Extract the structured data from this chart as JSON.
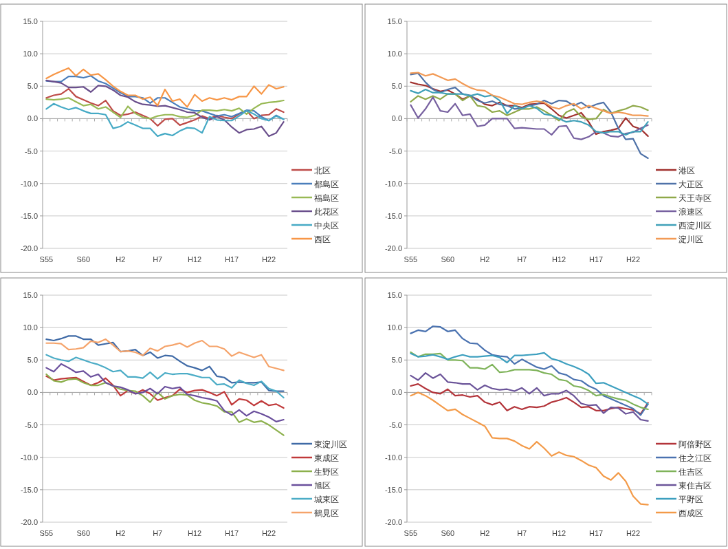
{
  "chart_data": [
    {
      "type": "line",
      "categories": [
        "S55",
        null,
        null,
        null,
        null,
        "S60",
        null,
        null,
        null,
        null,
        "H2",
        null,
        null,
        null,
        null,
        "H7",
        null,
        null,
        null,
        null,
        "H12",
        null,
        null,
        null,
        null,
        "H17",
        null,
        null,
        null,
        null,
        "H22",
        null,
        null
      ],
      "ylim": [
        -20,
        15
      ],
      "yticks": [
        {
          "value": 15,
          "label": "15.0"
        },
        {
          "value": 10,
          "label": "10.0"
        },
        {
          "value": 5,
          "label": "5.0"
        },
        {
          "value": 0,
          "label": "0.0"
        },
        {
          "value": -5,
          "label": "-5.0"
        },
        {
          "value": -10,
          "label": "-10.0"
        },
        {
          "value": -15,
          "label": "-15.0"
        },
        {
          "value": -20,
          "label": "-20.0"
        }
      ],
      "grid": "y",
      "legend": "right",
      "series": [
        {
          "name": "北区",
          "color": "#be4b48",
          "values": [
            3.2,
            3.6,
            3.8,
            4.6,
            3.4,
            2.9,
            2.4,
            2.0,
            2.8,
            1.2,
            0.5,
            0.7,
            1.0,
            0.5,
            0.0,
            -1.1,
            -0.1,
            0.0,
            -1.0,
            -0.6,
            -0.2,
            0.4,
            0.0,
            0.5,
            0.2,
            0.0,
            0.7,
            1.2,
            0.0,
            0.5,
            0.6,
            1.5,
            1.0
          ]
        },
        {
          "name": "都島区",
          "color": "#4a7ebb",
          "values": [
            5.8,
            5.7,
            5.7,
            6.5,
            6.5,
            6.3,
            6.6,
            5.8,
            5.4,
            4.7,
            4.0,
            3.4,
            3.4,
            3.2,
            2.4,
            3.2,
            3.2,
            2.5,
            1.8,
            1.5,
            1.2,
            1.2,
            0.8,
            0.4,
            0.6,
            0.3,
            0.8,
            1.3,
            1.2,
            0.3,
            -0.3,
            0.5,
            -0.1
          ]
        },
        {
          "name": "福島区",
          "color": "#98b954",
          "values": [
            3.0,
            2.9,
            3.0,
            3.2,
            2.6,
            2.0,
            2.2,
            1.5,
            1.8,
            1.0,
            0.2,
            1.9,
            0.8,
            0.2,
            0.0,
            0.4,
            0.6,
            0.6,
            0.3,
            0.2,
            0.5,
            1.3,
            1.3,
            1.2,
            1.4,
            1.2,
            1.6,
            0.7,
            1.6,
            2.3,
            2.5,
            2.6,
            2.8
          ]
        },
        {
          "name": "此花区",
          "color": "#6a4f8c",
          "values": [
            5.9,
            5.7,
            5.5,
            4.8,
            4.8,
            4.9,
            4.1,
            5.1,
            5.0,
            4.4,
            3.6,
            3.3,
            2.6,
            2.2,
            2.1,
            1.9,
            2.0,
            1.7,
            1.4,
            1.0,
            0.9,
            0.2,
            -0.2,
            0.3,
            -0.2,
            -1.3,
            -2.2,
            -1.7,
            -1.6,
            -1.2,
            -2.7,
            -2.2,
            -0.5
          ]
        },
        {
          "name": "中央区",
          "color": "#46aac5",
          "values": [
            1.5,
            2.3,
            1.8,
            1.4,
            1.7,
            1.2,
            0.8,
            0.8,
            0.6,
            -1.5,
            -1.2,
            -0.5,
            -1.0,
            -1.5,
            -1.5,
            -2.7,
            -2.3,
            -2.6,
            -1.9,
            -1.4,
            -1.5,
            -2.2,
            0.3,
            -0.2,
            -0.3,
            -0.3,
            0.4,
            1.2,
            0.7,
            0.0,
            -0.3,
            0.4,
            -0.1
          ]
        },
        {
          "name": "西区",
          "color": "#f79646",
          "values": [
            6.2,
            6.8,
            7.3,
            7.8,
            6.6,
            7.6,
            6.7,
            6.9,
            6.0,
            5.0,
            4.2,
            3.6,
            3.6,
            3.0,
            3.3,
            2.0,
            4.5,
            2.7,
            3.0,
            1.8,
            3.7,
            2.7,
            3.2,
            2.9,
            3.2,
            2.9,
            3.4,
            3.4,
            5.0,
            3.8,
            5.2,
            4.6,
            4.9
          ]
        }
      ]
    },
    {
      "type": "line",
      "categories": [
        "S55",
        null,
        null,
        null,
        null,
        "S60",
        null,
        null,
        null,
        null,
        "H2",
        null,
        null,
        null,
        null,
        "H7",
        null,
        null,
        null,
        null,
        "H12",
        null,
        null,
        null,
        null,
        "H17",
        null,
        null,
        null,
        null,
        "H22",
        null,
        null
      ],
      "ylim": [
        -20,
        15
      ],
      "yticks": [
        {
          "value": 15,
          "label": "15.0"
        },
        {
          "value": 10,
          "label": "10.0"
        },
        {
          "value": 5,
          "label": "5.0"
        },
        {
          "value": 0,
          "label": "0.0"
        },
        {
          "value": -5,
          "label": "-5.0"
        },
        {
          "value": -10,
          "label": "-10.0"
        },
        {
          "value": -15,
          "label": "-15.0"
        },
        {
          "value": -20,
          "label": "-20.0"
        }
      ],
      "grid": "y",
      "legend": "right",
      "series": [
        {
          "name": "港区",
          "color": "#a1312e",
          "values": [
            5.6,
            5.3,
            5.1,
            4.6,
            4.2,
            4.4,
            3.8,
            3.0,
            3.5,
            3.0,
            2.2,
            2.0,
            2.5,
            2.0,
            2.0,
            1.7,
            2.2,
            2.3,
            2.4,
            1.5,
            0.5,
            0.1,
            0.5,
            0.9,
            -0.5,
            -2.4,
            -2.0,
            -1.8,
            -1.5,
            0.1,
            -1.2,
            -1.6,
            -2.7
          ]
        },
        {
          "name": "大正区",
          "color": "#4f72a8",
          "values": [
            6.8,
            7.0,
            5.6,
            4.5,
            4.0,
            4.5,
            4.8,
            3.8,
            3.6,
            2.8,
            2.4,
            2.7,
            2.2,
            2.0,
            1.5,
            1.6,
            2.0,
            2.2,
            2.8,
            2.3,
            2.8,
            2.7,
            2.0,
            2.5,
            1.7,
            2.2,
            2.5,
            1.0,
            -1.5,
            -3.2,
            -3.1,
            -5.4,
            -6.1
          ]
        },
        {
          "name": "天王寺区",
          "color": "#8fa849",
          "values": [
            2.6,
            3.5,
            3.0,
            3.5,
            3.0,
            3.8,
            3.8,
            2.8,
            3.5,
            2.0,
            1.8,
            1.0,
            1.2,
            0.5,
            1.0,
            1.5,
            1.5,
            1.8,
            1.2,
            0.5,
            -0.3,
            1.0,
            1.5,
            0.3,
            -0.1,
            0.0,
            1.4,
            0.8,
            1.2,
            1.5,
            2.0,
            1.8,
            1.3
          ]
        },
        {
          "name": "浪速区",
          "color": "#7761a0",
          "values": [
            2.1,
            0.1,
            1.5,
            3.3,
            1.2,
            1.0,
            2.3,
            0.5,
            0.7,
            -1.2,
            -1.0,
            0.0,
            0.0,
            0.0,
            -1.5,
            -1.4,
            -1.5,
            -1.6,
            -1.6,
            -2.5,
            -1.2,
            -1.1,
            -3.0,
            -3.2,
            -2.8,
            -2.0,
            -2.2,
            -2.7,
            -2.8,
            -2.3,
            -2.1,
            -1.5,
            -1.0
          ]
        },
        {
          "name": "西淀川区",
          "color": "#3fa0b8",
          "values": [
            4.3,
            3.9,
            4.5,
            4.0,
            4.0,
            3.8,
            3.8,
            3.8,
            3.5,
            3.8,
            3.4,
            3.6,
            2.8,
            0.8,
            2.0,
            1.5,
            2.0,
            1.6,
            0.7,
            0.5,
            0.0,
            -0.5,
            -0.3,
            -0.5,
            -1.0,
            -2.0,
            -2.2,
            -2.0,
            -2.0,
            -2.5,
            -2.0,
            -2.0,
            -0.5
          ]
        },
        {
          "name": "淀川区",
          "color": "#f29a55",
          "values": [
            7.0,
            7.1,
            6.6,
            6.9,
            6.4,
            5.9,
            6.1,
            5.4,
            4.8,
            4.4,
            4.3,
            3.6,
            3.3,
            2.8,
            2.3,
            2.2,
            2.5,
            2.7,
            2.5,
            1.8,
            1.5,
            2.0,
            2.3,
            1.5,
            2.0,
            1.6,
            1.2,
            0.8,
            1.0,
            0.8,
            0.5,
            0.5,
            0.4
          ]
        }
      ]
    },
    {
      "type": "line",
      "categories": [
        "S55",
        null,
        null,
        null,
        null,
        "S60",
        null,
        null,
        null,
        null,
        "H2",
        null,
        null,
        null,
        null,
        "H7",
        null,
        null,
        null,
        null,
        "H12",
        null,
        null,
        null,
        null,
        "H17",
        null,
        null,
        null,
        null,
        "H22",
        null,
        null
      ],
      "ylim": [
        -20,
        15
      ],
      "yticks": [
        {
          "value": 15,
          "label": "15.0"
        },
        {
          "value": 10,
          "label": "10.0"
        },
        {
          "value": 5,
          "label": "5.0"
        },
        {
          "value": 0,
          "label": "0.0"
        },
        {
          "value": -5,
          "label": "-5.0"
        },
        {
          "value": -10,
          "label": "-10.0"
        },
        {
          "value": -15,
          "label": "-15.0"
        },
        {
          "value": -20,
          "label": "-20.0"
        }
      ],
      "grid": "y",
      "legend": "right",
      "series": [
        {
          "name": "東淀川区",
          "color": "#3f6aa6",
          "values": [
            8.2,
            8.0,
            8.3,
            8.7,
            8.7,
            8.2,
            8.2,
            7.3,
            7.5,
            7.7,
            6.3,
            6.4,
            6.6,
            5.7,
            6.2,
            5.3,
            5.7,
            5.6,
            4.8,
            4.1,
            3.8,
            3.4,
            4.0,
            2.5,
            2.3,
            1.5,
            1.6,
            1.5,
            1.5,
            1.6,
            0.3,
            0.2,
            0.2
          ]
        },
        {
          "name": "東成区",
          "color": "#c0393a",
          "values": [
            2.5,
            1.9,
            2.1,
            2.2,
            2.3,
            1.7,
            1.1,
            1.5,
            2.2,
            1.1,
            -0.5,
            0.3,
            -0.2,
            0.4,
            -0.2,
            -1.2,
            -0.8,
            -0.5,
            0.5,
            0.0,
            0.3,
            0.4,
            0.0,
            -0.5,
            0.1,
            -1.9,
            -1.0,
            -1.2,
            -2.0,
            -1.3,
            -2.0,
            -1.8,
            -2.4
          ]
        },
        {
          "name": "生野区",
          "color": "#8cb04c",
          "values": [
            2.8,
            1.8,
            1.6,
            2.0,
            2.1,
            1.5,
            1.1,
            1.1,
            1.5,
            1.0,
            0.5,
            0.3,
            0.2,
            -0.5,
            -1.5,
            0.0,
            -1.0,
            -0.5,
            -0.3,
            -0.4,
            -1.2,
            -1.6,
            -1.8,
            -2.1,
            -3.0,
            -3.0,
            -4.6,
            -4.1,
            -4.6,
            -4.4,
            -5.0,
            -5.8,
            -6.6
          ]
        },
        {
          "name": "旭区",
          "color": "#6a4f9c",
          "values": [
            3.8,
            3.2,
            4.4,
            3.8,
            3.1,
            3.3,
            2.4,
            2.8,
            1.5,
            1.0,
            0.8,
            0.4,
            -0.2,
            0.0,
            0.6,
            -0.2,
            0.9,
            0.6,
            0.8,
            -0.3,
            -0.5,
            -0.8,
            -1.0,
            -1.3,
            -2.8,
            -3.5,
            -2.7,
            -3.6,
            -2.9,
            -3.3,
            -3.8,
            -4.5,
            -4.2
          ]
        },
        {
          "name": "城東区",
          "color": "#4bacc6",
          "values": [
            5.8,
            5.3,
            5.0,
            4.8,
            5.4,
            5.0,
            4.6,
            4.3,
            3.8,
            3.2,
            3.4,
            2.4,
            2.4,
            2.2,
            3.1,
            2.1,
            3.0,
            2.8,
            2.9,
            2.9,
            2.6,
            2.3,
            2.3,
            1.2,
            1.3,
            0.7,
            1.9,
            1.4,
            1.1,
            1.7,
            0.6,
            0.2,
            -0.8
          ]
        },
        {
          "name": "鶴見区",
          "color": "#f5a36a",
          "values": [
            7.6,
            7.6,
            7.5,
            6.6,
            6.7,
            6.9,
            7.9,
            7.7,
            8.2,
            7.3,
            6.3,
            6.4,
            6.2,
            5.7,
            6.8,
            6.4,
            7.1,
            7.3,
            7.6,
            7.0,
            7.6,
            8.0,
            7.1,
            7.1,
            6.7,
            5.6,
            6.2,
            5.8,
            5.4,
            5.8,
            4.0,
            3.7,
            3.4
          ]
        }
      ]
    },
    {
      "type": "line",
      "categories": [
        "S55",
        null,
        null,
        null,
        null,
        "S60",
        null,
        null,
        null,
        null,
        "H2",
        null,
        null,
        null,
        null,
        "H7",
        null,
        null,
        null,
        null,
        "H12",
        null,
        null,
        null,
        null,
        "H17",
        null,
        null,
        null,
        null,
        "H22",
        null,
        null
      ],
      "ylim": [
        -20,
        15
      ],
      "yticks": [
        {
          "value": 15,
          "label": "15.0"
        },
        {
          "value": 10,
          "label": "10.0"
        },
        {
          "value": 5,
          "label": "5.0"
        },
        {
          "value": 0,
          "label": "0.0"
        },
        {
          "value": -5,
          "label": "-5.0"
        },
        {
          "value": -10,
          "label": "-10.0"
        },
        {
          "value": -15,
          "label": "-15.0"
        },
        {
          "value": -20,
          "label": "-20.0"
        }
      ],
      "grid": "y",
      "legend": "right",
      "series": [
        {
          "name": "阿倍野区",
          "color": "#b3343a",
          "values": [
            1.0,
            1.3,
            0.6,
            0.0,
            -0.2,
            0.5,
            -0.5,
            -0.4,
            -0.7,
            -0.5,
            -1.5,
            -1.9,
            -1.5,
            -2.8,
            -2.2,
            -2.6,
            -2.2,
            -2.3,
            -2.1,
            -1.5,
            -1.2,
            -0.8,
            -1.5,
            -2.3,
            -2.2,
            -2.8,
            -2.8,
            -2.5,
            -2.3,
            -2.5,
            -2.7,
            -3.3,
            -1.6
          ]
        },
        {
          "name": "住之江区",
          "color": "#4a72b0",
          "values": [
            9.1,
            9.6,
            9.4,
            10.2,
            10.1,
            9.4,
            9.6,
            8.3,
            7.6,
            7.5,
            6.5,
            5.8,
            5.6,
            5.5,
            4.4,
            5.1,
            4.5,
            3.9,
            3.6,
            4.1,
            3.0,
            2.7,
            2.0,
            1.8,
            1.0,
            0.5,
            -0.5,
            -1.0,
            -1.5,
            -2.0,
            -2.5,
            -3.5,
            -1.8
          ]
        },
        {
          "name": "住吉区",
          "color": "#7fb35a",
          "values": [
            6.2,
            5.5,
            5.9,
            5.9,
            6.0,
            5.0,
            5.0,
            4.9,
            3.8,
            3.8,
            3.6,
            4.3,
            3.1,
            3.2,
            3.5,
            3.5,
            3.5,
            3.4,
            3.0,
            2.8,
            2.0,
            1.8,
            1.0,
            0.8,
            0.3,
            -0.5,
            -0.3,
            -0.7,
            -1.0,
            -1.2,
            -1.8,
            -2.3,
            -2.6
          ]
        },
        {
          "name": "東住吉区",
          "color": "#6b5499",
          "values": [
            2.6,
            1.9,
            3.0,
            2.2,
            2.8,
            1.6,
            1.5,
            1.3,
            1.3,
            0.4,
            1.1,
            0.6,
            0.4,
            0.5,
            0.2,
            0.7,
            -0.2,
            0.7,
            -0.5,
            -0.2,
            -0.2,
            0.3,
            -0.5,
            -1.7,
            -2.0,
            -1.9,
            -3.2,
            -2.3,
            -2.4,
            -3.3,
            -3.0,
            -4.2,
            -4.4
          ]
        },
        {
          "name": "平野区",
          "color": "#3c9fbf",
          "values": [
            6.0,
            5.5,
            5.6,
            5.8,
            5.5,
            5.1,
            5.5,
            5.8,
            5.5,
            5.5,
            5.6,
            5.7,
            5.4,
            4.6,
            5.7,
            5.7,
            5.8,
            5.9,
            6.1,
            5.2,
            4.9,
            4.4,
            4.0,
            3.5,
            2.8,
            1.4,
            1.5,
            1.0,
            0.5,
            0.0,
            -0.5,
            -1.0,
            -1.8
          ]
        },
        {
          "name": "西成区",
          "color": "#f39a48",
          "values": [
            -0.5,
            0.0,
            -0.5,
            -1.2,
            -2.0,
            -2.8,
            -2.6,
            -3.4,
            -4.0,
            -4.6,
            -5.2,
            -7.0,
            -7.1,
            -7.1,
            -7.5,
            -8.2,
            -8.7,
            -7.6,
            -8.6,
            -9.8,
            -9.2,
            -9.7,
            -9.9,
            -10.5,
            -11.2,
            -11.6,
            -12.9,
            -13.5,
            -12.4,
            -13.7,
            -16.0,
            -17.2,
            -17.3
          ]
        }
      ]
    }
  ]
}
